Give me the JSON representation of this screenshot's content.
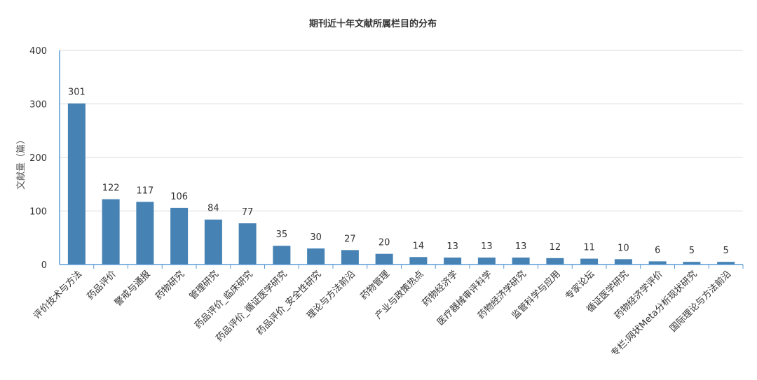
{
  "chart_data": {
    "type": "bar",
    "title": "期刊近十年文献所属栏目的分布",
    "xlabel": "",
    "ylabel": "文献量（篇）",
    "ylim": [
      0,
      400
    ],
    "yticks": [
      0,
      100,
      200,
      300,
      400
    ],
    "grid": true,
    "legend": "none",
    "bar_color": "#4682b4",
    "categories": [
      "评价技术与方法",
      "药品评价",
      "警戒与通报",
      "药物研究",
      "管理研究",
      "药品评价_临床研究",
      "药品评价_循证医学研究",
      "药品评价_安全性研究",
      "理论与方法前沿",
      "药物管理",
      "产业与政策热点",
      "药物经济学",
      "医疗器械审评科学",
      "药物经济学研究",
      "监管科学与应用",
      "专家论坛",
      "循证医学研究",
      "药物经济学评价",
      "专栏:网状Meta分析现状研究",
      "国际理论与方法前沿"
    ],
    "values": [
      301,
      122,
      117,
      106,
      84,
      77,
      35,
      30,
      27,
      20,
      14,
      13,
      13,
      13,
      12,
      11,
      10,
      6,
      5,
      5
    ]
  }
}
